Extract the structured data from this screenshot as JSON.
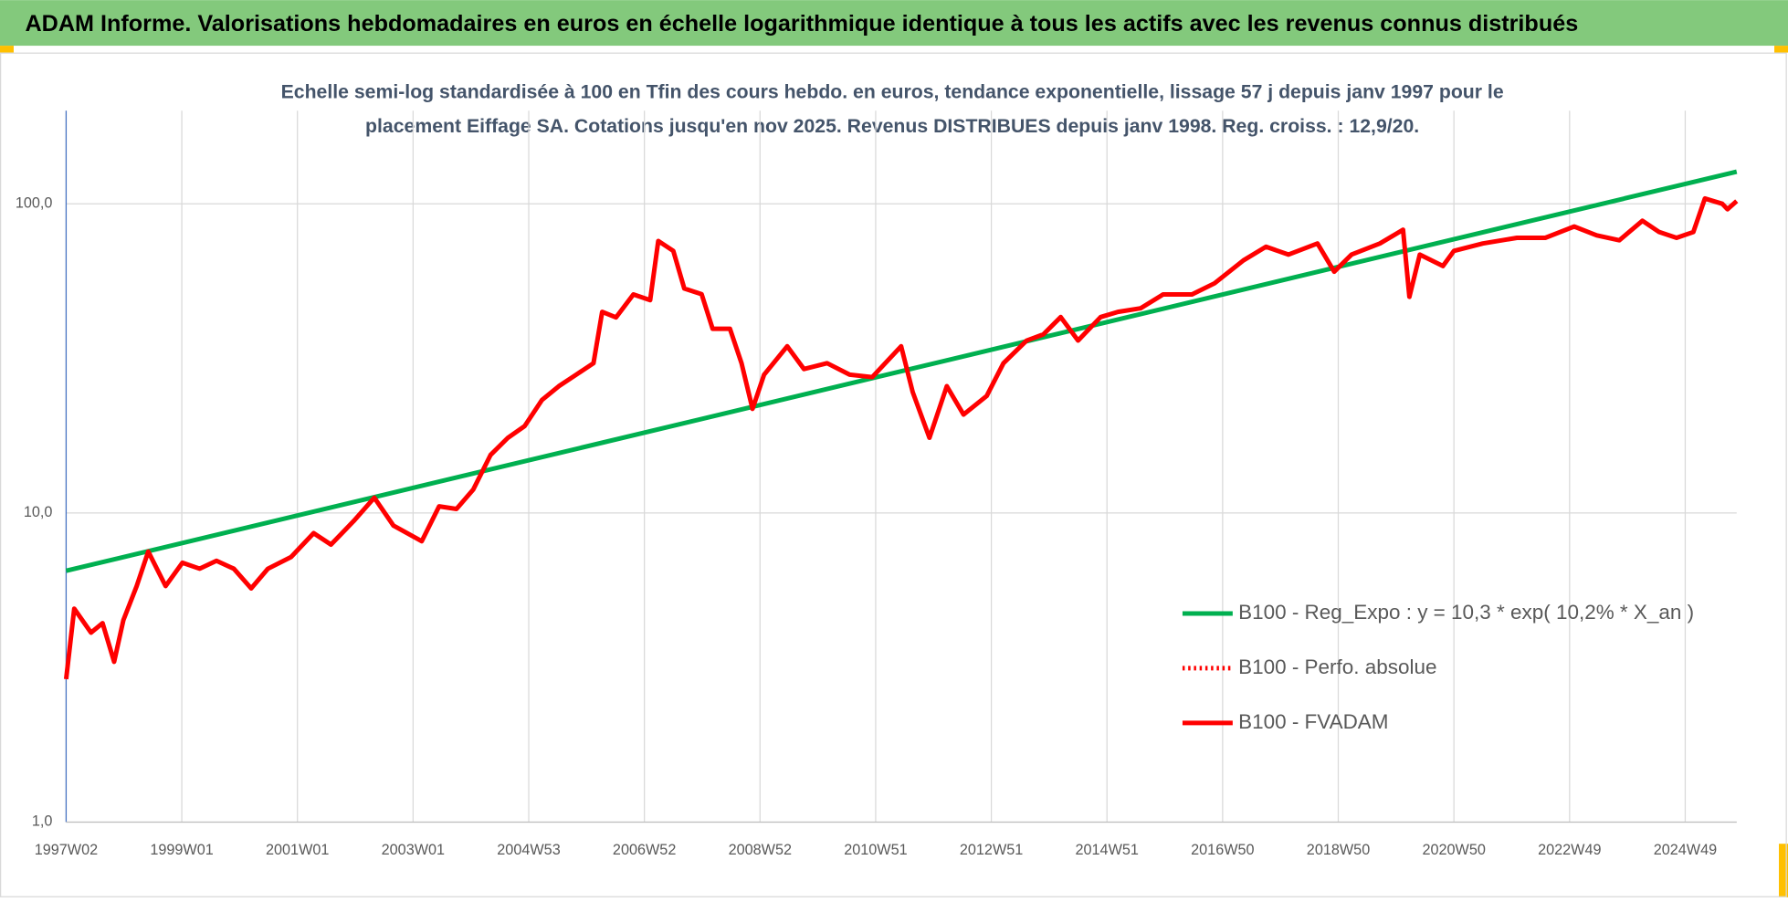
{
  "header": {
    "title": "ADAM Informe. Valorisations hebdomadaires en euros en échelle logarithmique identique à tous les actifs avec les revenus connus distribués"
  },
  "chart_data": {
    "type": "line",
    "title": "Echelle semi-log standardisée à 100 en Tfin des cours hebdo. en euros, tendance exponentielle, lissage 57 j depuis janv 1997 pour le placement Eiffage SA. Cotations jusqu'en nov 2025. Revenus DISTRIBUES depuis janv 1998. Reg. croiss. : 12,9/20.",
    "log_y": true,
    "grid": true,
    "legend": "right",
    "xlim": [
      1997.0,
      2025.89
    ],
    "ylim": [
      1,
      200
    ],
    "yticks": [
      {
        "value": 1,
        "label": "1,0"
      },
      {
        "value": 10,
        "label": "10,0"
      },
      {
        "value": 100,
        "label": "100,0"
      }
    ],
    "xticks": [
      {
        "value": 1997.0,
        "label": "1997W02"
      },
      {
        "value": 1999.0,
        "label": "1999W01"
      },
      {
        "value": 2001.0,
        "label": "2001W01"
      },
      {
        "value": 2003.0,
        "label": "2003W01"
      },
      {
        "value": 2005.0,
        "label": "2004W53"
      },
      {
        "value": 2007.0,
        "label": "2006W52"
      },
      {
        "value": 2009.0,
        "label": "2008W52"
      },
      {
        "value": 2011.0,
        "label": "2010W51"
      },
      {
        "value": 2013.0,
        "label": "2012W51"
      },
      {
        "value": 2015.0,
        "label": "2014W51"
      },
      {
        "value": 2017.0,
        "label": "2016W50"
      },
      {
        "value": 2019.0,
        "label": "2018W50"
      },
      {
        "value": 2021.0,
        "label": "2020W50"
      },
      {
        "value": 2023.0,
        "label": "2022W49"
      },
      {
        "value": 2025.0,
        "label": "2024W49"
      }
    ],
    "series": [
      {
        "name": "B100 - Reg_Expo : y = 10,3 * exp( 10,2% *  X_an )",
        "color": "#00b050",
        "style": "solid",
        "x": [
          1997.0,
          2025.89
        ],
        "values": [
          6.5,
          127
        ]
      },
      {
        "name": "B100 - Perfo. absolue",
        "color": "#ff0000",
        "style": "dotted",
        "x": [],
        "values": []
      },
      {
        "name": "B100 - FVADAM",
        "color": "#ff0000",
        "style": "solid",
        "x": [
          1997.0,
          1997.14,
          1997.43,
          1997.63,
          1997.83,
          1997.99,
          1998.22,
          1998.42,
          1998.72,
          1999.01,
          1999.31,
          1999.6,
          1999.9,
          2000.2,
          2000.49,
          2000.89,
          2001.28,
          2001.58,
          2001.97,
          2002.33,
          2002.66,
          2003.15,
          2003.45,
          2003.75,
          2004.04,
          2004.34,
          2004.64,
          2004.93,
          2005.23,
          2005.52,
          2005.82,
          2006.12,
          2006.27,
          2006.51,
          2006.81,
          2007.1,
          2007.24,
          2007.5,
          2007.69,
          2007.99,
          2008.18,
          2008.48,
          2008.68,
          2008.87,
          2009.07,
          2009.47,
          2009.76,
          2010.16,
          2010.55,
          2010.94,
          2011.44,
          2011.64,
          2011.93,
          2012.23,
          2012.52,
          2012.92,
          2013.21,
          2013.61,
          2013.9,
          2014.2,
          2014.5,
          2014.89,
          2015.19,
          2015.58,
          2015.97,
          2016.47,
          2016.86,
          2017.36,
          2017.75,
          2018.14,
          2018.64,
          2018.93,
          2019.23,
          2019.72,
          2020.12,
          2020.23,
          2020.41,
          2020.81,
          2021.0,
          2021.5,
          2022.09,
          2022.58,
          2023.08,
          2023.47,
          2023.86,
          2024.26,
          2024.55,
          2024.85,
          2025.14,
          2025.34,
          2025.64,
          2025.73,
          2025.89
        ],
        "values": [
          2.9,
          4.9,
          4.1,
          4.4,
          3.3,
          4.5,
          5.8,
          7.5,
          5.8,
          6.9,
          6.6,
          7.0,
          6.6,
          5.7,
          6.6,
          7.2,
          8.6,
          7.9,
          9.4,
          11.2,
          9.1,
          8.1,
          10.5,
          10.3,
          11.9,
          15.4,
          17.5,
          19.1,
          23.2,
          25.7,
          28.0,
          30.5,
          44.7,
          42.9,
          50.9,
          48.8,
          75.8,
          70.4,
          53.2,
          51.0,
          39.4,
          39.4,
          30.5,
          21.7,
          28.0,
          34.6,
          29.2,
          30.5,
          28.0,
          27.5,
          34.6,
          24.6,
          17.5,
          25.7,
          20.8,
          23.9,
          30.5,
          36.1,
          37.8,
          43.0,
          36.1,
          43.0,
          44.7,
          45.9,
          50.9,
          50.9,
          55.3,
          65.6,
          72.6,
          68.5,
          74.4,
          60.3,
          68.5,
          74.4,
          82.4,
          50.0,
          68.5,
          62.9,
          70.4,
          74.4,
          77.6,
          77.6,
          84.4,
          79.0,
          76.2,
          88.1,
          81.0,
          77.6,
          81.0,
          104,
          100,
          96,
          102
        ]
      }
    ]
  }
}
